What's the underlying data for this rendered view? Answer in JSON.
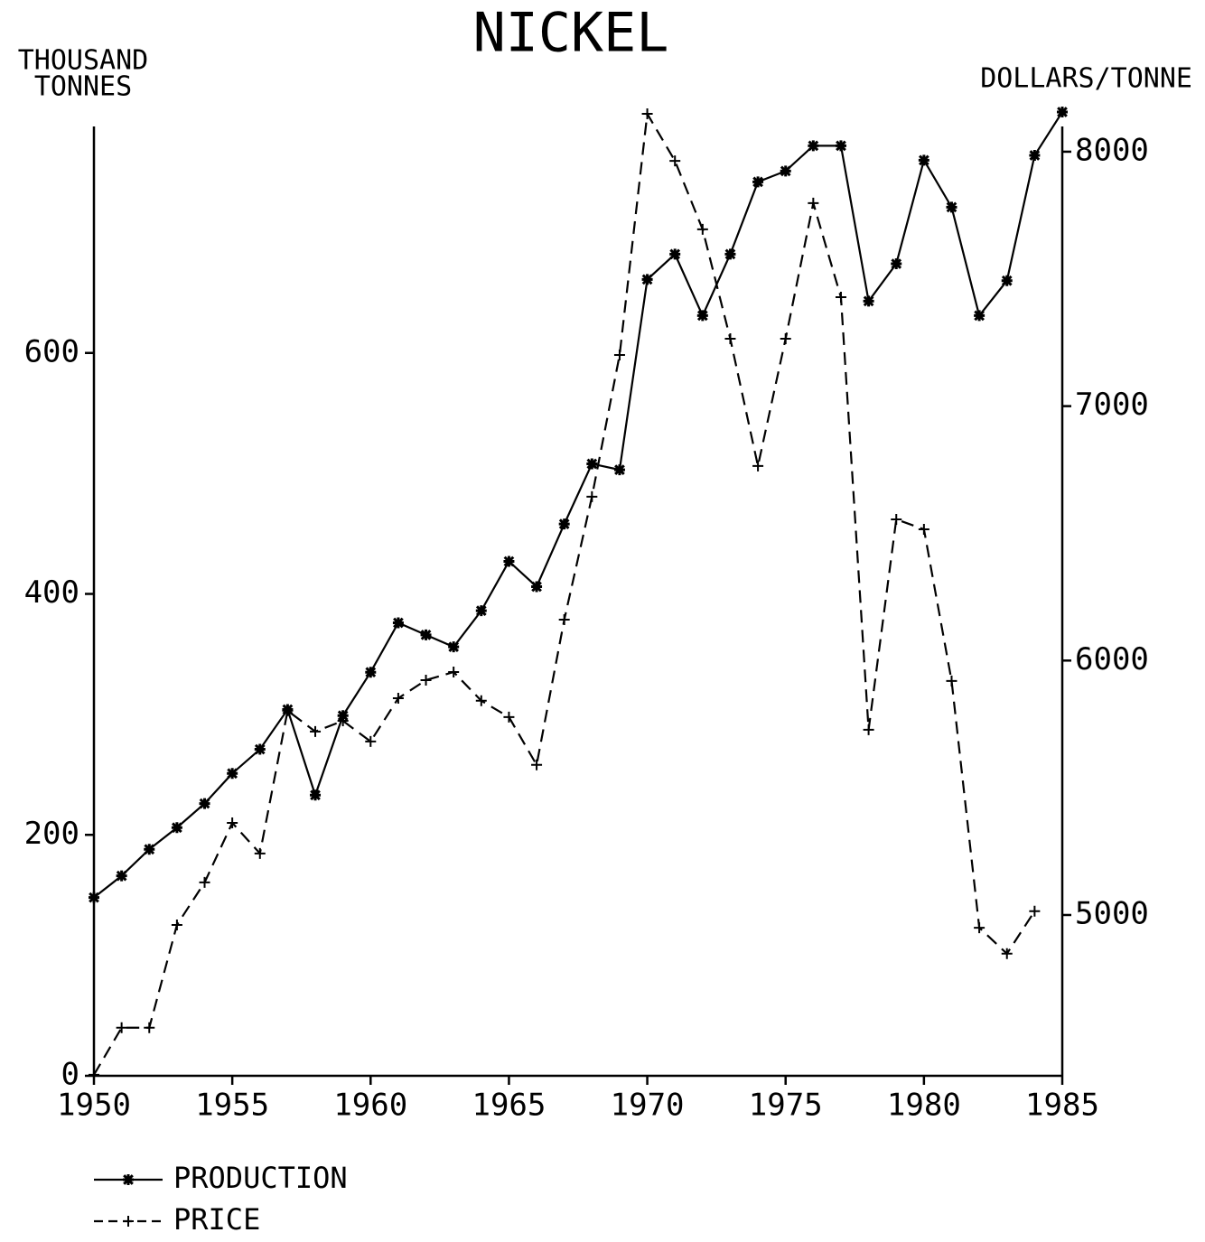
{
  "chart_data": {
    "type": "line",
    "title": "NICKEL",
    "ylabel": [
      "THOUSAND",
      "TONNES"
    ],
    "y2label": "DOLLARS/TONNE",
    "x": [
      1950,
      1951,
      1952,
      1953,
      1954,
      1955,
      1956,
      1957,
      1958,
      1959,
      1960,
      1961,
      1962,
      1963,
      1964,
      1965,
      1966,
      1967,
      1968,
      1969,
      1970,
      1971,
      1972,
      1973,
      1974,
      1975,
      1976,
      1977,
      1978,
      1979,
      1980,
      1981,
      1982,
      1983,
      1984,
      1985
    ],
    "xlim": [
      1950,
      1985
    ],
    "xticks": [
      1950,
      1955,
      1960,
      1965,
      1970,
      1975,
      1980,
      1985
    ],
    "ylim": [
      0,
      800
    ],
    "yticks": [
      0,
      200,
      400,
      600
    ],
    "y2lim": [
      4368,
      8156
    ],
    "y2ticks": [
      5000,
      6000,
      7000,
      8000
    ],
    "legend": "bottom-left",
    "series": [
      {
        "name": "PRODUCTION",
        "color": "#000000",
        "style": "solid",
        "marker": "asterisk",
        "values": [
          148,
          166,
          188,
          206,
          226,
          251,
          271,
          304,
          233,
          299,
          335,
          376,
          366,
          356,
          386,
          427,
          406,
          458,
          508,
          503,
          661,
          682,
          631,
          682,
          742,
          751,
          772,
          772,
          643,
          674,
          760,
          721,
          631,
          660,
          764,
          800
        ]
      },
      {
        "name": "PRICE",
        "color": "#000000",
        "style": "dashed",
        "marker": "plus",
        "axis": "y2",
        "values": [
          4372,
          4557,
          4557,
          4961,
          5128,
          5362,
          5242,
          5803,
          5721,
          5763,
          5682,
          5852,
          5923,
          5955,
          5842,
          5778,
          5590,
          6161,
          6644,
          7201,
          8149,
          7964,
          7695,
          7265,
          6765,
          7265,
          7798,
          7428,
          5728,
          6555,
          6516,
          5920,
          4950,
          4848,
          5015,
          null
        ]
      }
    ]
  }
}
